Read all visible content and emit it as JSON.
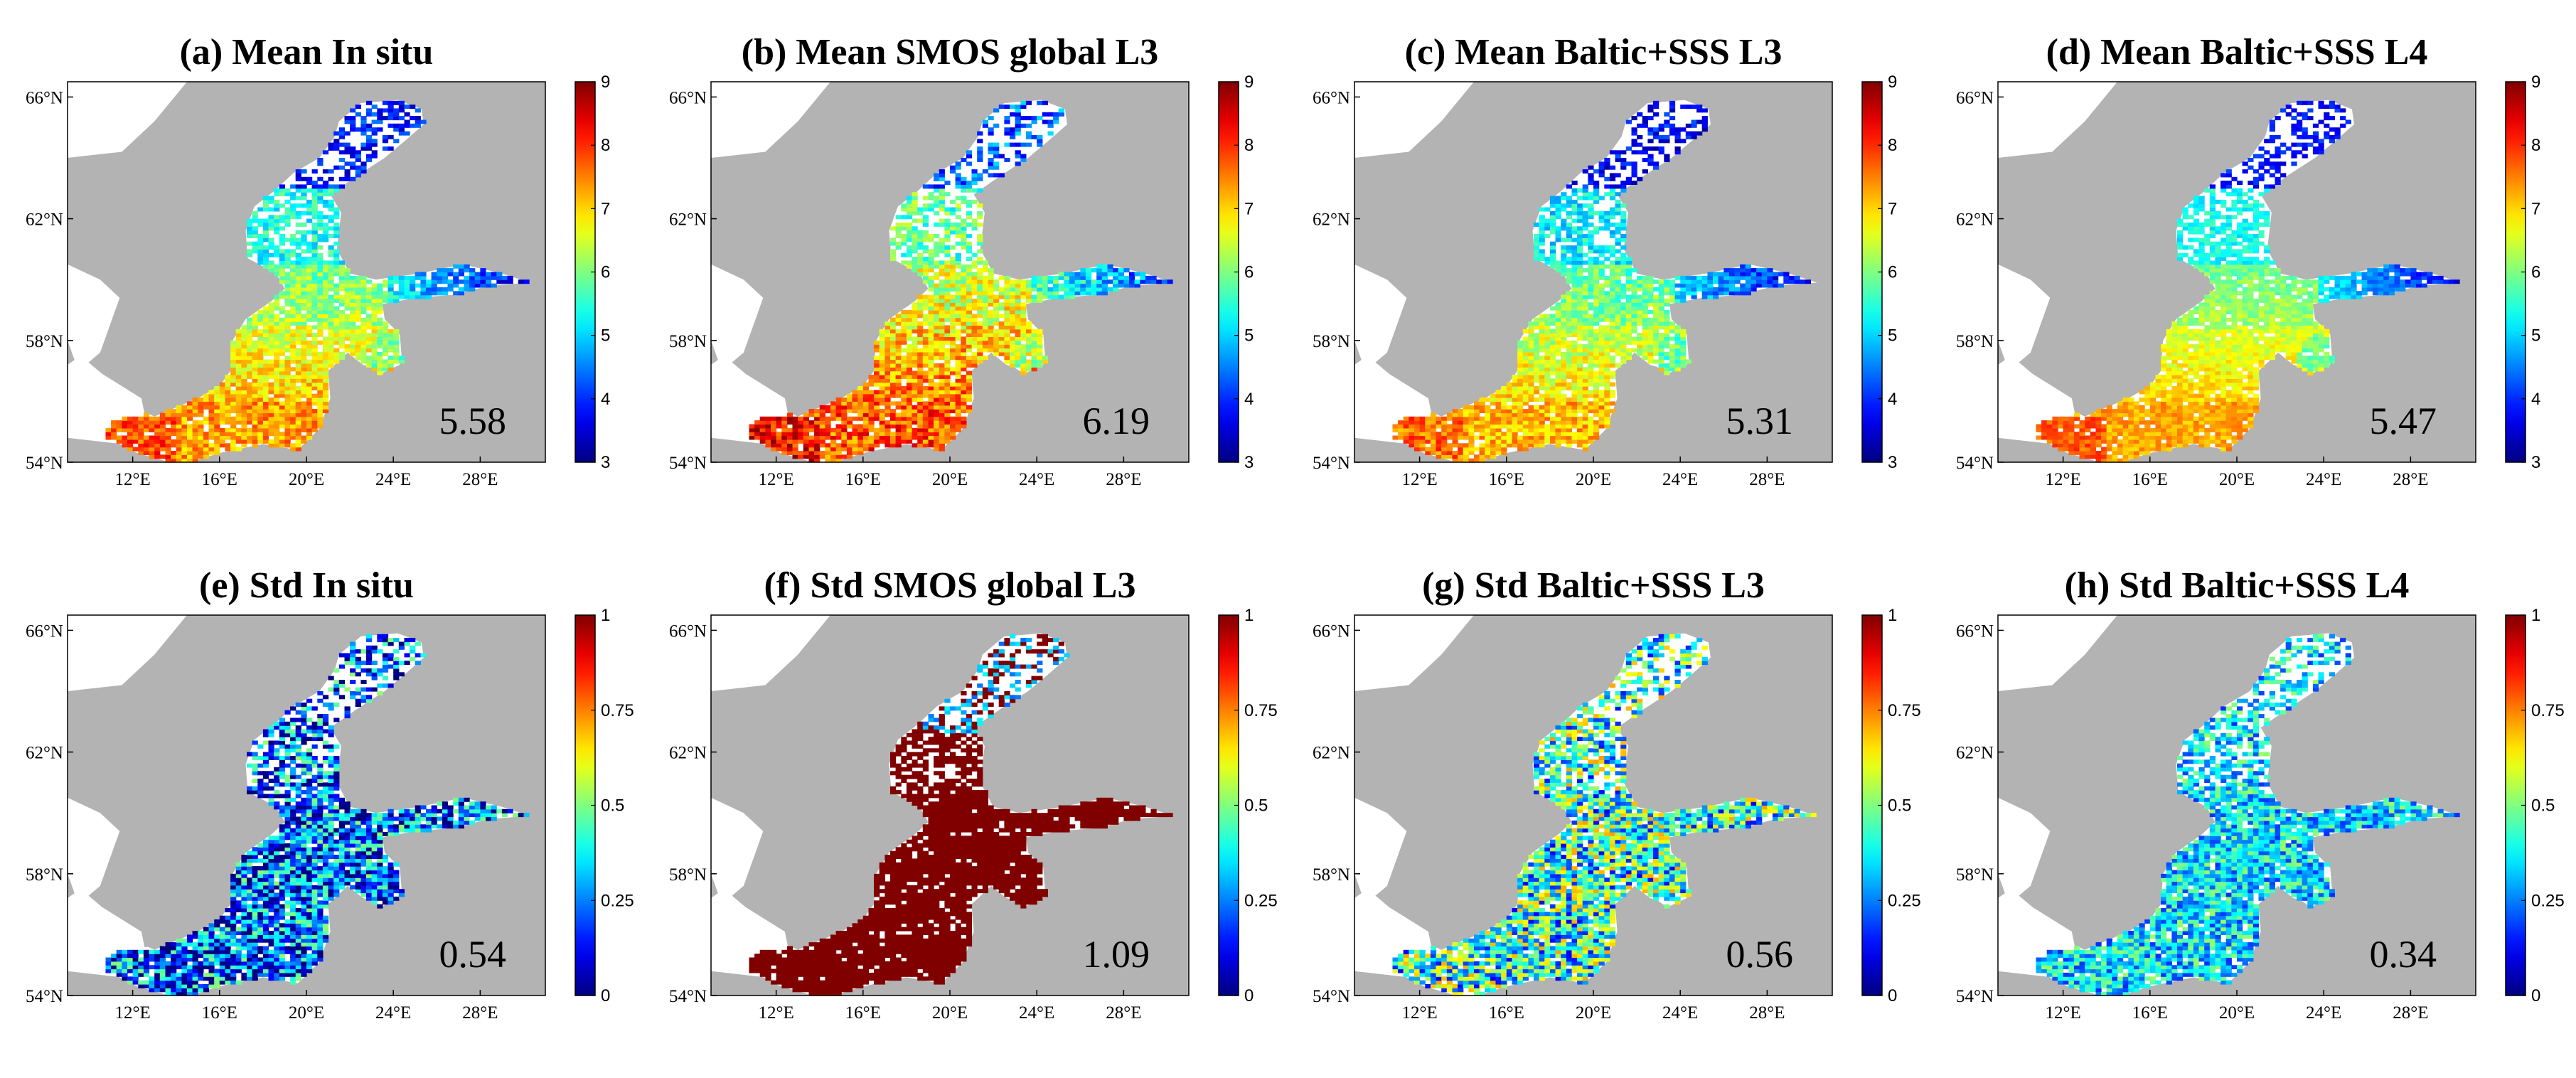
{
  "colors": {
    "land": "#b3b3b3",
    "sea_white": "#ffffff",
    "colormap": "jet"
  },
  "axes": {
    "x_ticks": [
      "12°E",
      "16°E",
      "20°E",
      "24°E",
      "28°E"
    ],
    "y_ticks": [
      "66°N",
      "62°N",
      "58°N",
      "54°N"
    ],
    "x_tick_values": [
      12,
      16,
      20,
      24,
      28
    ],
    "y_tick_values": [
      66,
      62,
      58,
      54
    ],
    "lon_range": [
      9,
      31
    ],
    "lat_range": [
      54,
      66.5
    ]
  },
  "chart_data": [
    {
      "type": "heatmap",
      "panel": "a",
      "title": "(a) Mean In situ",
      "stat": "5.58",
      "cbar_ticks": [
        "9",
        "8",
        "7",
        "6",
        "5",
        "4",
        "3"
      ],
      "cbar_range": [
        3,
        9
      ],
      "field": "mean_insitu",
      "scale_center": 0.55,
      "noise": 0.16
    },
    {
      "type": "heatmap",
      "panel": "b",
      "title": "(b) Mean SMOS global L3",
      "stat": "6.19",
      "cbar_ticks": [
        "9",
        "8",
        "7",
        "6",
        "5",
        "4",
        "3"
      ],
      "cbar_range": [
        3,
        9
      ],
      "field": "mean_smos",
      "scale_center": 0.62,
      "noise": 0.22
    },
    {
      "type": "heatmap",
      "panel": "c",
      "title": "(c) Mean Baltic+SSS L3",
      "stat": "5.31",
      "cbar_ticks": [
        "9",
        "8",
        "7",
        "6",
        "5",
        "4",
        "3"
      ],
      "cbar_range": [
        3,
        9
      ],
      "field": "mean_l3",
      "scale_center": 0.52,
      "noise": 0.16
    },
    {
      "type": "heatmap",
      "panel": "d",
      "title": "(d) Mean Baltic+SSS L4",
      "stat": "5.47",
      "cbar_ticks": [
        "9",
        "8",
        "7",
        "6",
        "5",
        "4",
        "3"
      ],
      "cbar_range": [
        3,
        9
      ],
      "field": "mean_l4",
      "scale_center": 0.54,
      "noise": 0.1
    },
    {
      "type": "heatmap",
      "panel": "e",
      "title": "(e) Std In situ",
      "stat": "0.54",
      "cbar_ticks": [
        "1",
        "0.75",
        "0.5",
        "0.25",
        "0"
      ],
      "cbar_range": [
        0,
        1
      ],
      "field": "std_insitu",
      "scale_center": 0.22,
      "noise": 0.3
    },
    {
      "type": "heatmap",
      "panel": "f",
      "title": "(f) Std SMOS global L3",
      "stat": "1.09",
      "cbar_ticks": [
        "1",
        "0.75",
        "0.5",
        "0.25",
        "0"
      ],
      "cbar_range": [
        0,
        1
      ],
      "field": "std_smos",
      "scale_center": 0.97,
      "noise": 0.08
    },
    {
      "type": "heatmap",
      "panel": "g",
      "title": "(g) Std Baltic+SSS L3",
      "stat": "0.56",
      "cbar_ticks": [
        "1",
        "0.75",
        "0.5",
        "0.25",
        "0"
      ],
      "cbar_range": [
        0,
        1
      ],
      "field": "std_l3",
      "scale_center": 0.42,
      "noise": 0.3
    },
    {
      "type": "heatmap",
      "panel": "h",
      "title": "(h) Std Baltic+SSS L4",
      "stat": "0.34",
      "cbar_ticks": [
        "1",
        "0.75",
        "0.5",
        "0.25",
        "0"
      ],
      "cbar_range": [
        0,
        1
      ],
      "field": "std_l4",
      "scale_center": 0.35,
      "noise": 0.18
    }
  ]
}
